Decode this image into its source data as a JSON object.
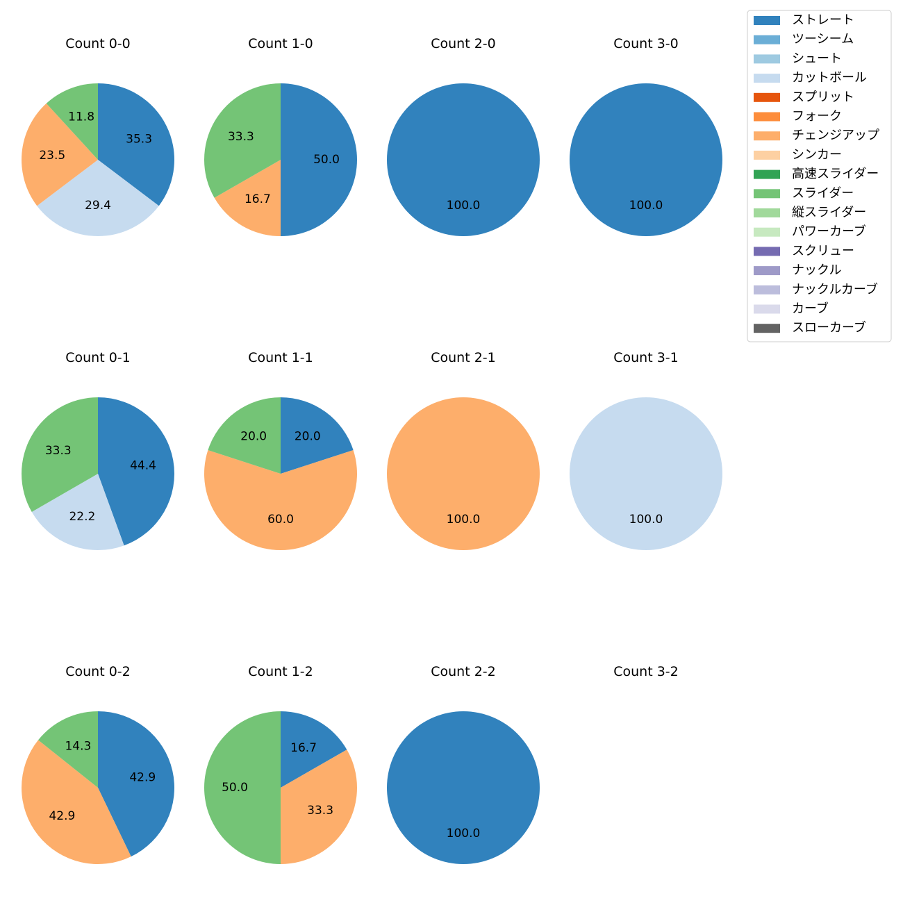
{
  "chart_data": {
    "type": "pie",
    "legend": {
      "placement": "top-right",
      "entries": [
        {
          "name": "ストレート",
          "color": "#3182bd"
        },
        {
          "name": "ツーシーム",
          "color": "#6baed6"
        },
        {
          "name": "シュート",
          "color": "#9ecae1"
        },
        {
          "name": "カットボール",
          "color": "#c6dbef"
        },
        {
          "name": "スプリット",
          "color": "#e6550d"
        },
        {
          "name": "フォーク",
          "color": "#fd8d3c"
        },
        {
          "name": "チェンジアップ",
          "color": "#fdae6b"
        },
        {
          "name": "シンカー",
          "color": "#fdd0a2"
        },
        {
          "name": "高速スライダー",
          "color": "#31a354"
        },
        {
          "name": "スライダー",
          "color": "#74c476"
        },
        {
          "name": "縦スライダー",
          "color": "#a1d99b"
        },
        {
          "name": "パワーカーブ",
          "color": "#c7e9c0"
        },
        {
          "name": "スクリュー",
          "color": "#756bb1"
        },
        {
          "name": "ナックル",
          "color": "#9e9ac8"
        },
        {
          "name": "ナックルカーブ",
          "color": "#bcbddc"
        },
        {
          "name": "カーブ",
          "color": "#dadaeb"
        },
        {
          "name": "スローカーブ",
          "color": "#636363"
        }
      ]
    },
    "pies": [
      {
        "title": "Count 0-0",
        "slices": [
          {
            "type": "ストレート",
            "value": 35.3,
            "label": "35.3"
          },
          {
            "type": "カットボール",
            "value": 29.4,
            "label": "29.4"
          },
          {
            "type": "チェンジアップ",
            "value": 23.5,
            "label": "23.5"
          },
          {
            "type": "スライダー",
            "value": 11.8,
            "label": "11.8"
          }
        ]
      },
      {
        "title": "Count 1-0",
        "slices": [
          {
            "type": "ストレート",
            "value": 50.0,
            "label": "50.0"
          },
          {
            "type": "チェンジアップ",
            "value": 16.7,
            "label": "16.7"
          },
          {
            "type": "スライダー",
            "value": 33.3,
            "label": "33.3"
          }
        ]
      },
      {
        "title": "Count 2-0",
        "slices": [
          {
            "type": "ストレート",
            "value": 100.0,
            "label": "100.0"
          }
        ]
      },
      {
        "title": "Count 3-0",
        "slices": [
          {
            "type": "ストレート",
            "value": 100.0,
            "label": "100.0"
          }
        ]
      },
      {
        "title": "Count 0-1",
        "slices": [
          {
            "type": "ストレート",
            "value": 44.4,
            "label": "44.4"
          },
          {
            "type": "カットボール",
            "value": 22.2,
            "label": "22.2"
          },
          {
            "type": "スライダー",
            "value": 33.3,
            "label": "33.3"
          }
        ]
      },
      {
        "title": "Count 1-1",
        "slices": [
          {
            "type": "ストレート",
            "value": 20.0,
            "label": "20.0"
          },
          {
            "type": "チェンジアップ",
            "value": 60.0,
            "label": "60.0"
          },
          {
            "type": "スライダー",
            "value": 20.0,
            "label": "20.0"
          }
        ]
      },
      {
        "title": "Count 2-1",
        "slices": [
          {
            "type": "チェンジアップ",
            "value": 100.0,
            "label": "100.0"
          }
        ]
      },
      {
        "title": "Count 3-1",
        "slices": [
          {
            "type": "カットボール",
            "value": 100.0,
            "label": "100.0"
          }
        ]
      },
      {
        "title": "Count 0-2",
        "slices": [
          {
            "type": "ストレート",
            "value": 42.9,
            "label": "42.9"
          },
          {
            "type": "チェンジアップ",
            "value": 42.9,
            "label": "42.9"
          },
          {
            "type": "スライダー",
            "value": 14.3,
            "label": "14.3"
          }
        ]
      },
      {
        "title": "Count 1-2",
        "slices": [
          {
            "type": "ストレート",
            "value": 16.7,
            "label": "16.7"
          },
          {
            "type": "チェンジアップ",
            "value": 33.3,
            "label": "33.3"
          },
          {
            "type": "スライダー",
            "value": 50.0,
            "label": "50.0"
          }
        ]
      },
      {
        "title": "Count 2-2",
        "slices": [
          {
            "type": "ストレート",
            "value": 100.0,
            "label": "100.0"
          }
        ]
      },
      {
        "title": "Count 3-2",
        "slices": []
      }
    ]
  }
}
